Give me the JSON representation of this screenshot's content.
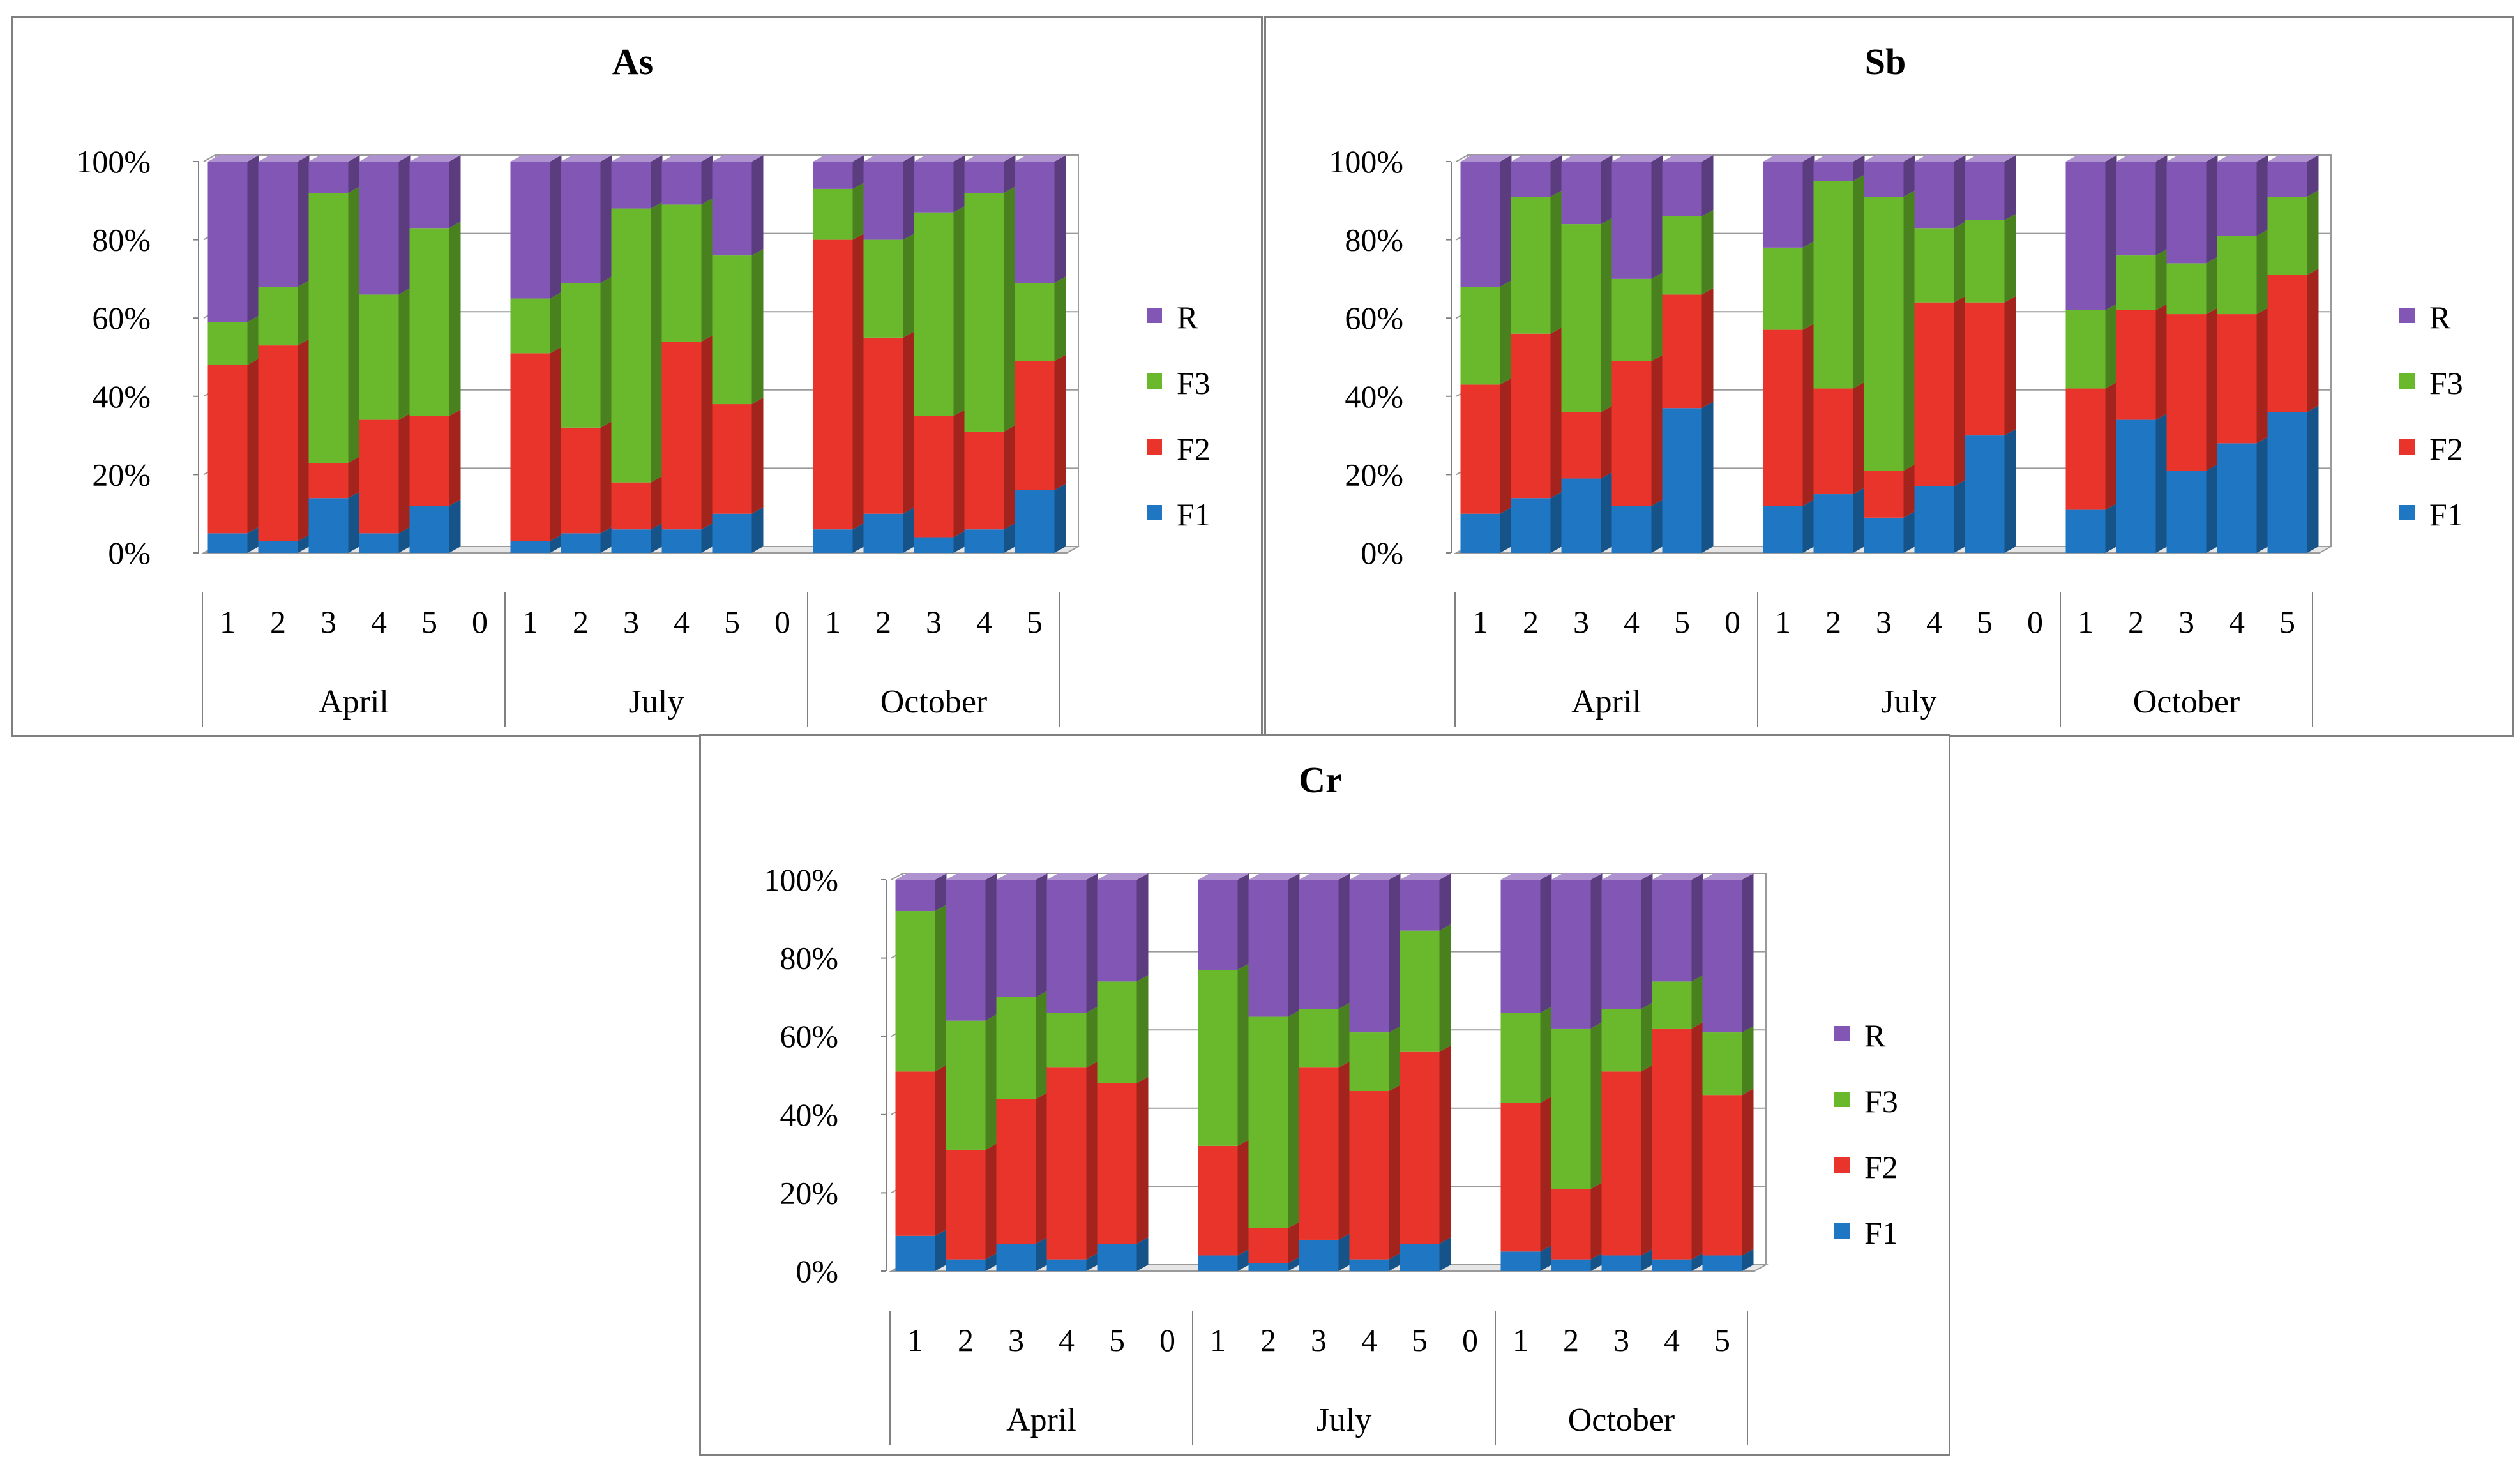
{
  "colors": {
    "F1": "#1f77c4",
    "F2": "#e8342a",
    "F3": "#6ab82c",
    "R": "#8256b5"
  },
  "chart_data": [
    {
      "type": "bar",
      "stacked": true,
      "title": "As",
      "groups": [
        {
          "label": "April",
          "categories": [
            "1",
            "2",
            "3",
            "4",
            "5",
            "0"
          ]
        },
        {
          "label": "July",
          "categories": [
            "1",
            "2",
            "3",
            "4",
            "5",
            "0"
          ]
        },
        {
          "label": "October",
          "categories": [
            "1",
            "2",
            "3",
            "4",
            "5"
          ]
        }
      ],
      "y_ticks": [
        "0%",
        "20%",
        "40%",
        "60%",
        "80%",
        "100%"
      ],
      "ylim": [
        0,
        100
      ],
      "legend": [
        "R",
        "F3",
        "F2",
        "F1"
      ],
      "legend_position": "right",
      "series": [
        {
          "name": "F1",
          "values": [
            5,
            3,
            14,
            5,
            12,
            null,
            3,
            5,
            6,
            6,
            10,
            null,
            6,
            10,
            4,
            6,
            16
          ]
        },
        {
          "name": "F2",
          "values": [
            43,
            50,
            9,
            29,
            23,
            null,
            48,
            27,
            12,
            48,
            28,
            null,
            74,
            45,
            31,
            25,
            33
          ]
        },
        {
          "name": "F3",
          "values": [
            11,
            15,
            69,
            32,
            48,
            null,
            14,
            37,
            70,
            35,
            38,
            null,
            13,
            25,
            52,
            61,
            20
          ]
        },
        {
          "name": "R",
          "values": [
            41,
            32,
            8,
            34,
            17,
            null,
            35,
            31,
            12,
            11,
            24,
            null,
            7,
            20,
            13,
            8,
            31
          ]
        }
      ]
    },
    {
      "type": "bar",
      "stacked": true,
      "title": "Sb",
      "groups": [
        {
          "label": "April",
          "categories": [
            "1",
            "2",
            "3",
            "4",
            "5",
            "0"
          ]
        },
        {
          "label": "July",
          "categories": [
            "1",
            "2",
            "3",
            "4",
            "5",
            "0"
          ]
        },
        {
          "label": "October",
          "categories": [
            "1",
            "2",
            "3",
            "4",
            "5"
          ]
        }
      ],
      "y_ticks": [
        "0%",
        "20%",
        "40%",
        "60%",
        "80%",
        "100%"
      ],
      "ylim": [
        0,
        100
      ],
      "legend": [
        "R",
        "F3",
        "F2",
        "F1"
      ],
      "legend_position": "right",
      "series": [
        {
          "name": "F1",
          "values": [
            10,
            14,
            19,
            12,
            37,
            null,
            12,
            15,
            9,
            17,
            30,
            null,
            11,
            34,
            21,
            28,
            36
          ]
        },
        {
          "name": "F2",
          "values": [
            33,
            42,
            17,
            37,
            29,
            null,
            45,
            27,
            12,
            47,
            34,
            null,
            31,
            28,
            40,
            33,
            35
          ]
        },
        {
          "name": "F3",
          "values": [
            25,
            35,
            48,
            21,
            20,
            null,
            21,
            53,
            70,
            19,
            21,
            null,
            20,
            14,
            13,
            20,
            20
          ]
        },
        {
          "name": "R",
          "values": [
            32,
            9,
            16,
            30,
            14,
            null,
            22,
            5,
            9,
            17,
            15,
            null,
            38,
            24,
            26,
            19,
            9
          ]
        }
      ]
    },
    {
      "type": "bar",
      "stacked": true,
      "title": "Cr",
      "groups": [
        {
          "label": "April",
          "categories": [
            "1",
            "2",
            "3",
            "4",
            "5",
            "0"
          ]
        },
        {
          "label": "July",
          "categories": [
            "1",
            "2",
            "3",
            "4",
            "5",
            "0"
          ]
        },
        {
          "label": "October",
          "categories": [
            "1",
            "2",
            "3",
            "4",
            "5"
          ]
        }
      ],
      "y_ticks": [
        "0%",
        "20%",
        "40%",
        "60%",
        "80%",
        "100%"
      ],
      "ylim": [
        0,
        100
      ],
      "legend": [
        "R",
        "F3",
        "F2",
        "F1"
      ],
      "legend_position": "right",
      "series": [
        {
          "name": "F1",
          "values": [
            9,
            3,
            7,
            3,
            7,
            null,
            4,
            2,
            8,
            3,
            7,
            null,
            5,
            3,
            4,
            3,
            4
          ]
        },
        {
          "name": "F2",
          "values": [
            42,
            28,
            37,
            49,
            41,
            null,
            28,
            9,
            44,
            43,
            49,
            null,
            38,
            18,
            47,
            59,
            41
          ]
        },
        {
          "name": "F3",
          "values": [
            41,
            33,
            26,
            14,
            26,
            null,
            45,
            54,
            15,
            15,
            31,
            null,
            23,
            41,
            16,
            12,
            16
          ]
        },
        {
          "name": "R",
          "values": [
            8,
            36,
            30,
            34,
            26,
            null,
            23,
            35,
            33,
            39,
            13,
            null,
            34,
            38,
            33,
            26,
            39
          ]
        }
      ]
    }
  ]
}
